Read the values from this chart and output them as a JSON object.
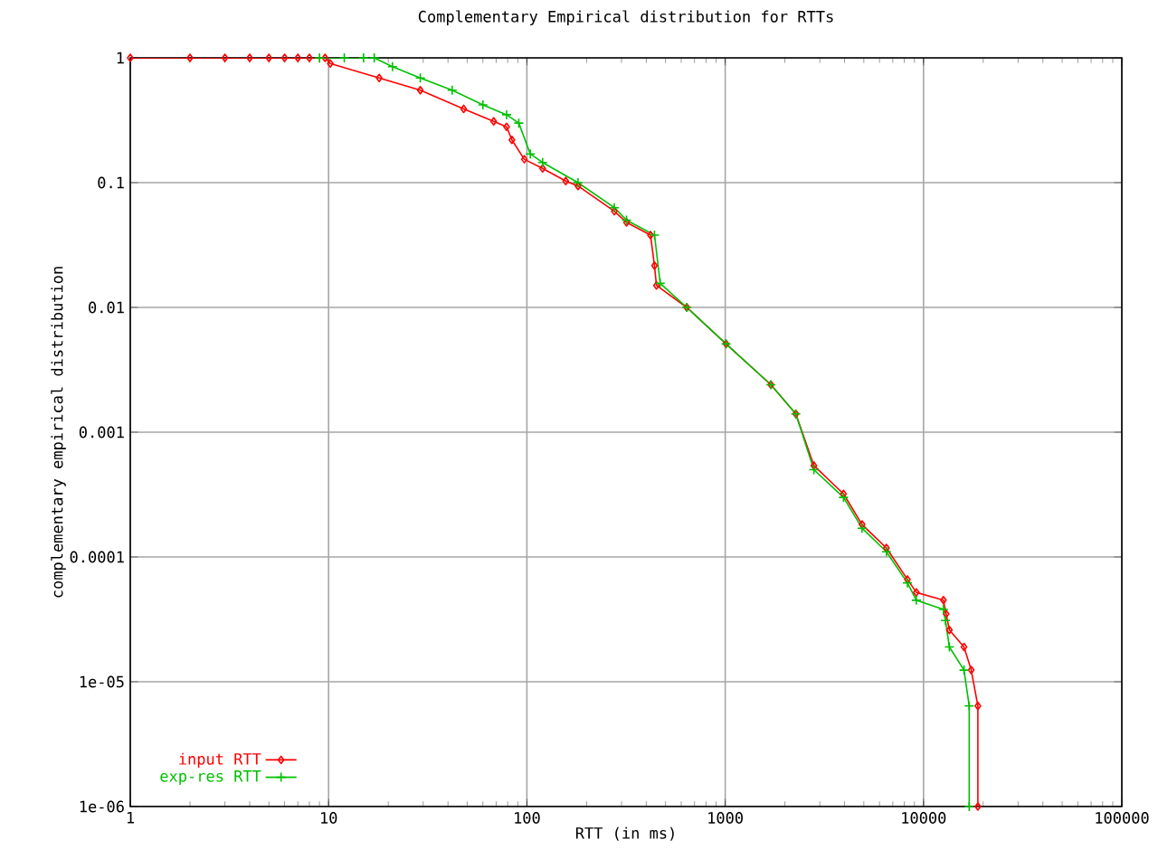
{
  "chart_data": {
    "type": "line",
    "title": "Complementary Empirical distribution for RTTs",
    "xlabel": "RTT (in ms)",
    "ylabel": "complementary empirical distribution",
    "log": "xy",
    "grid": true,
    "legend": "bottom left",
    "xlim": [
      1,
      100000
    ],
    "xticks": [
      1,
      10,
      100,
      1000,
      10000,
      100000
    ],
    "ylim": [
      1e-06,
      1
    ],
    "yticks": [
      1,
      0.1,
      0.01,
      0.001,
      0.0001,
      {
        "value": 1e-05,
        "label": "1e-05"
      },
      {
        "value": 1e-06,
        "label": "1e-06"
      }
    ],
    "series": [
      {
        "name": "input RTT",
        "color": "#ff0000",
        "marker": "diamond",
        "x": [
          1,
          2,
          3,
          4,
          5,
          6,
          7,
          8,
          9.6,
          10.2,
          18,
          29,
          48,
          68,
          79,
          84,
          97,
          120,
          157,
          181,
          276,
          318,
          420,
          440,
          450,
          640,
          1010,
          1700,
          2270,
          2800,
          3950,
          4900,
          6500,
          8300,
          9200,
          12600,
          13000,
          13500,
          16000,
          17400,
          18800,
          18800
        ],
        "values": [
          1,
          1,
          1,
          1,
          1,
          1,
          1,
          1,
          1,
          0.9,
          0.69,
          0.55,
          0.39,
          0.31,
          0.28,
          0.22,
          0.154,
          0.13,
          0.103,
          0.094,
          0.059,
          0.048,
          0.038,
          0.0216,
          0.015,
          0.01,
          0.0051,
          0.0024,
          0.0014,
          0.00054,
          0.00032,
          0.000182,
          0.000118,
          6.6e-05,
          5.2e-05,
          4.5e-05,
          3.5e-05,
          2.6e-05,
          1.9e-05,
          1.24e-05,
          6.4e-06,
          1e-06
        ]
      },
      {
        "name": "exp-res RTT",
        "color": "#00c000",
        "marker": "cross",
        "x": [
          9,
          12,
          15,
          17,
          21,
          29,
          42,
          60,
          79,
          91,
          104,
          120,
          181,
          276,
          318,
          440,
          470,
          640,
          1010,
          1700,
          2270,
          2800,
          3950,
          4900,
          6500,
          8300,
          9200,
          12600,
          12900,
          13500,
          16000,
          17000,
          17000
        ],
        "values": [
          1,
          1,
          1,
          1,
          0.85,
          0.69,
          0.55,
          0.42,
          0.35,
          0.3,
          0.17,
          0.145,
          0.1,
          0.063,
          0.05,
          0.038,
          0.0156,
          0.01,
          0.0051,
          0.0024,
          0.0014,
          0.0005,
          0.0003,
          0.00017,
          0.00011,
          6.2e-05,
          4.5e-05,
          3.8e-05,
          3.1e-05,
          1.9e-05,
          1.24e-05,
          6.4e-06,
          1e-06
        ]
      }
    ]
  }
}
